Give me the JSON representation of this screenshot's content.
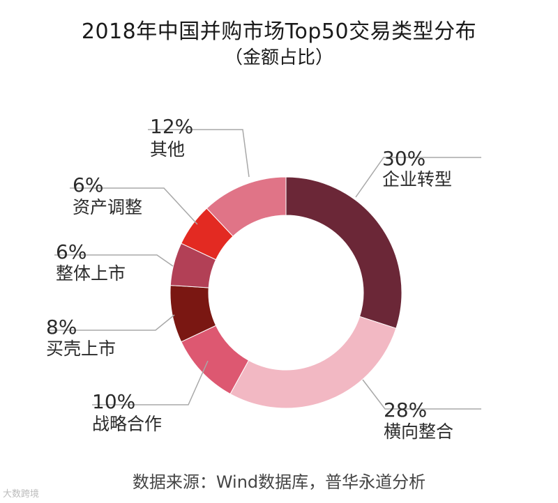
{
  "chart_data": {
    "type": "pie",
    "style": "donut",
    "title": "2018年中国并购市场Top50交易类型分布",
    "subtitle": "（金额占比）",
    "slices": [
      {
        "label": "企业转型",
        "value": 30,
        "pct": "30%",
        "color": "#6b2737"
      },
      {
        "label": "横向整合",
        "value": 28,
        "pct": "28%",
        "color": "#f2b8c3"
      },
      {
        "label": "战略合作",
        "value": 10,
        "pct": "10%",
        "color": "#dd5871"
      },
      {
        "label": "买壳上市",
        "value": 8,
        "pct": "8%",
        "color": "#7a1712"
      },
      {
        "label": "整体上市",
        "value": 6,
        "pct": "6%",
        "color": "#b24056"
      },
      {
        "label": "资产调整",
        "value": 6,
        "pct": "6%",
        "color": "#e32a22"
      },
      {
        "label": "其他",
        "value": 12,
        "pct": "12%",
        "color": "#e07487"
      }
    ]
  },
  "source": "数据来源：Wind数据库，普华永道分析",
  "watermark": "大数跨境"
}
